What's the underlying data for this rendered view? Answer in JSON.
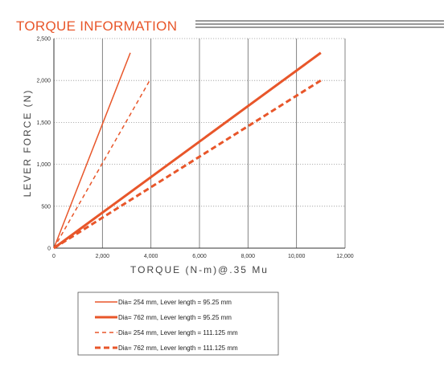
{
  "header": {
    "title": "TORQUE INFORMATION"
  },
  "colors": {
    "accent": "#e8562a",
    "grid_major": "#666666",
    "grid_minor": "#9a9a9a"
  },
  "chart_data": {
    "type": "line",
    "title": "TORQUE INFORMATION",
    "xlabel": "TORQUE (N-m)@.35 Mu",
    "ylabel": "LEVER FORCE (N)",
    "xlim": [
      0,
      12000
    ],
    "ylim": [
      0,
      2500
    ],
    "x_ticks": [
      0,
      2000,
      4000,
      6000,
      8000,
      10000,
      12000
    ],
    "x_tick_labels": [
      "0",
      "2,000",
      "4,000",
      "6,000",
      "8,000",
      "10,000",
      "12,000"
    ],
    "y_ticks": [
      0,
      500,
      1000,
      1500,
      2000,
      2500
    ],
    "y_tick_labels": [
      "0",
      "500",
      "1,000",
      "1,500",
      "2,000",
      "2,500"
    ],
    "grid": true,
    "legend_position": "bottom-center",
    "series": [
      {
        "name": "Dia= 254 mm,  Lever length = 95.25 mm",
        "x": [
          0,
          3150
        ],
        "y": [
          0,
          2330
        ],
        "color": "#e8562a",
        "style": "solid",
        "weight": "thin"
      },
      {
        "name": "Dia= 762 mm,  Lever length = 95.25 mm",
        "x": [
          0,
          11000
        ],
        "y": [
          0,
          2330
        ],
        "color": "#e8562a",
        "style": "solid",
        "weight": "thick"
      },
      {
        "name": "Dia= 254 mm,  Lever length = 111.125 mm",
        "x": [
          0,
          3950
        ],
        "y": [
          0,
          2000
        ],
        "color": "#e8562a",
        "style": "dashed",
        "weight": "thin"
      },
      {
        "name": "Dia= 762 mm,  Lever length = 111.125 mm",
        "x": [
          0,
          11000
        ],
        "y": [
          0,
          2000
        ],
        "color": "#e8562a",
        "style": "dashed",
        "weight": "thick"
      }
    ]
  }
}
